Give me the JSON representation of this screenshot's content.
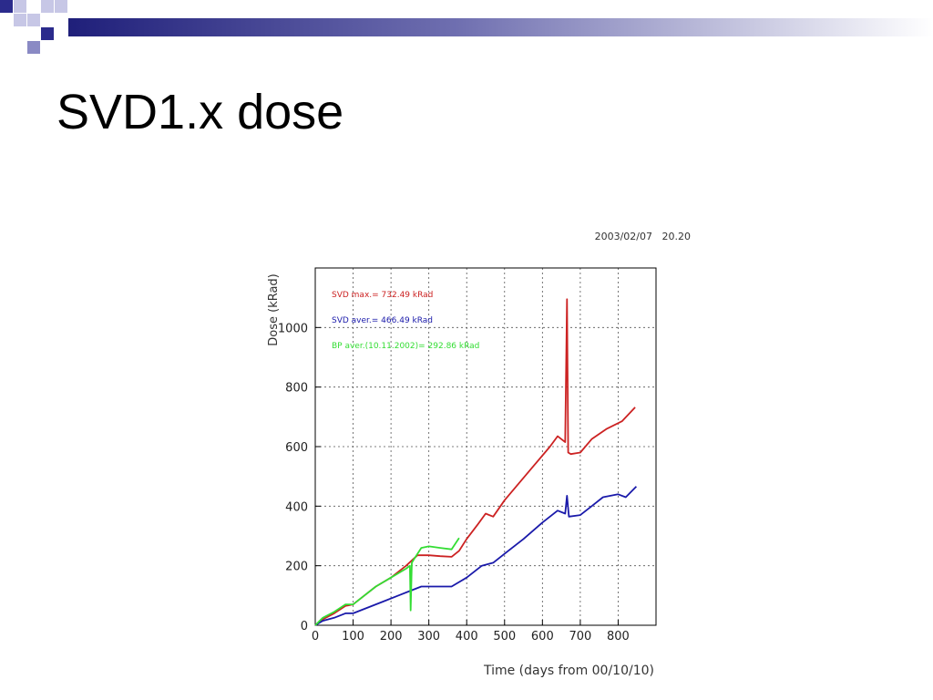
{
  "slide": {
    "title": "SVD1.x dose"
  },
  "colors": {
    "accent_dark": "#1f1f7a",
    "accent_mid": "#6f6fb0",
    "accent_light": "#c7c7e6"
  },
  "chart_data": {
    "type": "line",
    "timestamp": "2003/02/07   20.20",
    "xlabel": "Time (days from 00/10/10)",
    "ylabel": "Dose (kRad)",
    "xlim": [
      0,
      900
    ],
    "ylim": [
      0,
      1200
    ],
    "x_ticks": [
      0,
      100,
      200,
      300,
      400,
      500,
      600,
      700,
      800
    ],
    "y_ticks": [
      0,
      200,
      400,
      600,
      800,
      1000
    ],
    "grid": true,
    "series": [
      {
        "name": "SVD max.= 732.49 kRad",
        "color": "#cc2222",
        "x": [
          0,
          20,
          50,
          80,
          100,
          130,
          160,
          200,
          240,
          270,
          300,
          330,
          360,
          380,
          400,
          430,
          450,
          470,
          500,
          540,
          580,
          620,
          640,
          660,
          665,
          668,
          675,
          700,
          730,
          770,
          810,
          845
        ],
        "y": [
          0,
          20,
          40,
          65,
          70,
          100,
          130,
          160,
          200,
          235,
          235,
          232,
          230,
          250,
          290,
          340,
          375,
          365,
          420,
          480,
          540,
          600,
          635,
          615,
          1095,
          580,
          575,
          580,
          625,
          660,
          685,
          732
        ]
      },
      {
        "name": "SVD aver.= 466.49 kRad",
        "color": "#1a1aaa",
        "x": [
          0,
          20,
          50,
          80,
          100,
          140,
          180,
          220,
          250,
          280,
          320,
          360,
          400,
          440,
          470,
          510,
          550,
          600,
          640,
          660,
          665,
          670,
          700,
          730,
          760,
          800,
          820,
          848
        ],
        "y": [
          0,
          15,
          25,
          40,
          40,
          60,
          80,
          100,
          115,
          130,
          130,
          130,
          160,
          200,
          210,
          250,
          290,
          345,
          385,
          375,
          435,
          365,
          370,
          400,
          430,
          440,
          430,
          466
        ]
      },
      {
        "name": "BP aver.(10.11.2002)= 292.86 kRad",
        "color": "#33dd33",
        "x": [
          0,
          20,
          50,
          80,
          100,
          130,
          160,
          200,
          240,
          250,
          252,
          255,
          260,
          280,
          300,
          330,
          360,
          380
        ],
        "y": [
          0,
          25,
          45,
          70,
          70,
          100,
          130,
          160,
          190,
          200,
          50,
          210,
          220,
          260,
          265,
          260,
          255,
          293
        ]
      }
    ]
  }
}
